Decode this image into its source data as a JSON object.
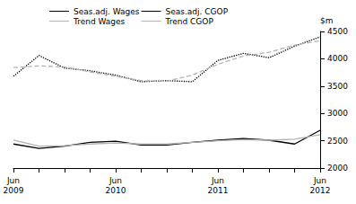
{
  "chart_data": {
    "type": "line",
    "y_label": "$m",
    "categories": [
      "Jun\n2009",
      null,
      null,
      null,
      "Jun\n2010",
      null,
      null,
      null,
      "Jun\n2011",
      null,
      null,
      null,
      "Jun\n2012"
    ],
    "series": [
      {
        "name": "Seas.adj. Wages",
        "color": "#000000",
        "line_style": "solid",
        "values": [
          2440,
          2360,
          2400,
          2470,
          2490,
          2420,
          2420,
          2470,
          2510,
          2540,
          2510,
          2440,
          2690
        ]
      },
      {
        "name": "Trend Wages",
        "color": "#b3b3b3",
        "line_style": "solid",
        "values": [
          2510,
          2400,
          2410,
          2440,
          2460,
          2440,
          2440,
          2470,
          2500,
          2520,
          2510,
          2530,
          2610
        ]
      },
      {
        "name": "Seas.adj. CGOP",
        "color": "#000000",
        "line_style": "dotted",
        "values": [
          3680,
          4060,
          3830,
          3780,
          3700,
          3580,
          3600,
          3580,
          3970,
          4100,
          4020,
          4230,
          4400
        ]
      },
      {
        "name": "Trend CGOP",
        "color": "#b3b3b3",
        "line_style": "dashed",
        "values": [
          3840,
          3870,
          3850,
          3760,
          3680,
          3600,
          3590,
          3700,
          3900,
          4050,
          4120,
          4250,
          4330
        ]
      }
    ],
    "ylim": [
      2000,
      4500
    ],
    "yticks": [
      2000,
      2500,
      3000,
      3500,
      4000,
      4500
    ],
    "grid": false,
    "legend": "top-left"
  }
}
